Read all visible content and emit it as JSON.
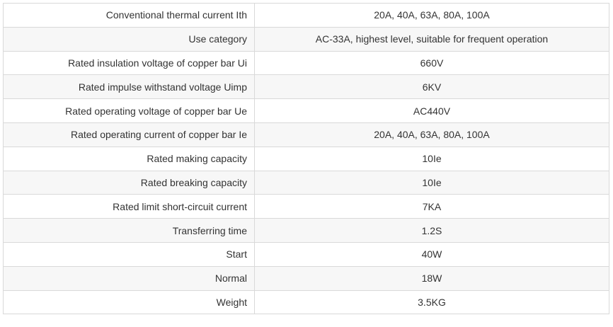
{
  "spec_table": {
    "rows": [
      {
        "label": "Conventional thermal current Ith",
        "value": "20A, 40A, 63A, 80A, 100A"
      },
      {
        "label": "Use category",
        "value": "AC-33A, highest level, suitable for frequent operation"
      },
      {
        "label": "Rated insulation voltage of copper bar Ui",
        "value": "660V"
      },
      {
        "label": "Rated impulse withstand voltage Uimp",
        "value": "6KV"
      },
      {
        "label": "Rated operating voltage of copper bar Ue",
        "value": "AC440V"
      },
      {
        "label": "Rated operating current of copper bar Ie",
        "value": "20A, 40A, 63A, 80A, 100A"
      },
      {
        "label": "Rated making capacity",
        "value": "10Ie"
      },
      {
        "label": "Rated breaking capacity",
        "value": "10Ie"
      },
      {
        "label": "Rated limit short-circuit current",
        "value": "7KA"
      },
      {
        "label": "Transferring time",
        "value": "1.2S"
      },
      {
        "label": "Start",
        "value": "40W"
      },
      {
        "label": "Normal",
        "value": "18W"
      },
      {
        "label": "Weight",
        "value": "3.5KG"
      }
    ]
  },
  "colors": {
    "border": "#d9d9d9",
    "row_alt_background": "#f7f7f7",
    "text": "#333333"
  }
}
